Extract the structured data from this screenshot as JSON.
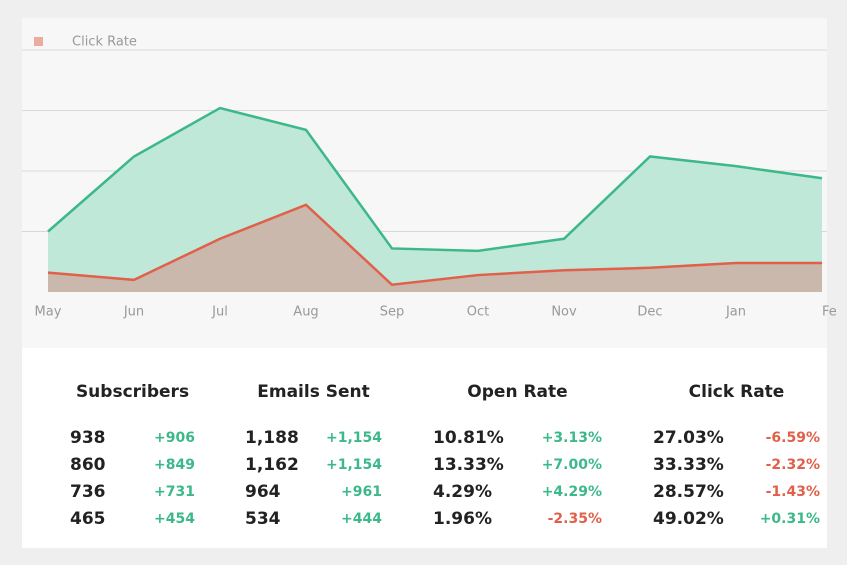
{
  "chart_data": {
    "type": "area",
    "legend": "Click Rate",
    "categories": [
      "May",
      "Jun",
      "Jul",
      "Aug",
      "Sep",
      "Oct",
      "Nov",
      "Dec",
      "Jan",
      "Fe"
    ],
    "series": [
      {
        "color": "#3cb88a",
        "fill": "#bfe8d9",
        "values": [
          25,
          56,
          76,
          67,
          18,
          17,
          22,
          56,
          52,
          47
        ]
      },
      {
        "name": "Click Rate",
        "color": "#e0604a",
        "fill": "#c9b8ab",
        "values": [
          8,
          5,
          22,
          36,
          3,
          7,
          9,
          10,
          12,
          12
        ]
      }
    ],
    "ylim": [
      0,
      100
    ],
    "yticks": [
      25,
      50,
      75,
      100
    ],
    "grid": true
  },
  "table": {
    "columns": [
      "Subscribers",
      "Emails Sent",
      "Open Rate",
      "Click Rate"
    ],
    "rows": [
      [
        [
          "938",
          "+906"
        ],
        [
          "1,188",
          "+1,154"
        ],
        [
          "10.81%",
          "+3.13%"
        ],
        [
          "27.03%",
          "-6.59%"
        ]
      ],
      [
        [
          "860",
          "+849"
        ],
        [
          "1,162",
          "+1,154"
        ],
        [
          "13.33%",
          "+7.00%"
        ],
        [
          "33.33%",
          "-2.32%"
        ]
      ],
      [
        [
          "736",
          "+731"
        ],
        [
          "964",
          "+961"
        ],
        [
          "4.29%",
          "+4.29%"
        ],
        [
          "28.57%",
          "-1.43%"
        ]
      ],
      [
        [
          "465",
          "+454"
        ],
        [
          "534",
          "+444"
        ],
        [
          "1.96%",
          "-2.35%"
        ],
        [
          "49.02%",
          "+0.31%"
        ]
      ]
    ]
  }
}
